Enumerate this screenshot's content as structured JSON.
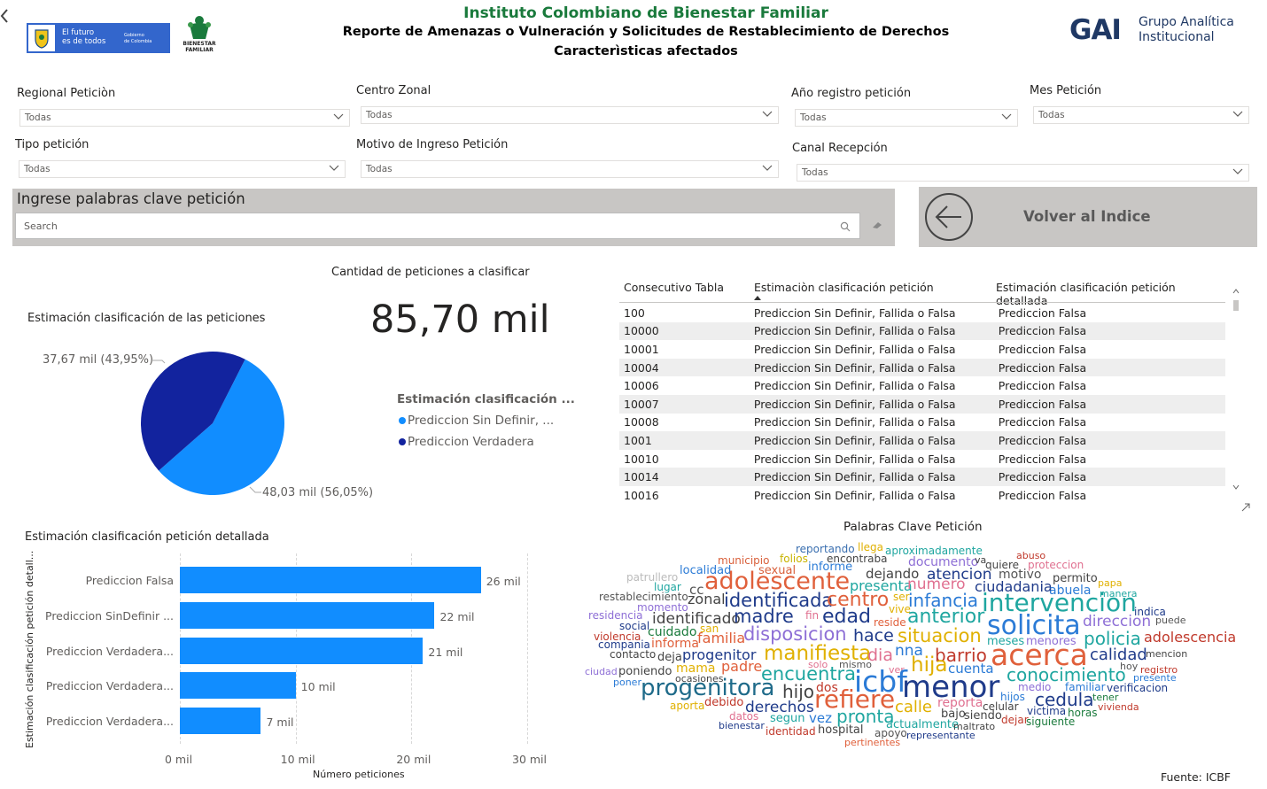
{
  "header": {
    "title": "Instituto Colombiano de Bienestar Familiar",
    "subtitle1": "Reporte de Amenazas o Vulneración y Solicitudes de Restablecimiento de Derechos",
    "subtitle2": "Caracterìsticas afectados",
    "logo_left_text1": "El futuro",
    "logo_left_text2": "es de todos",
    "logo_left_gov1": "Gobierno",
    "logo_left_gov2": "de Colombia",
    "logo_icbf_text1": "BIENESTAR",
    "logo_icbf_text2": "FAMILIAR",
    "logo_gai_text": "GAI",
    "logo_gai_line1": "Grupo Analítica",
    "logo_gai_line2": "Institucional"
  },
  "filters": [
    {
      "label": "Regional Peticiòn",
      "value": "Todas"
    },
    {
      "label": "Centro Zonal",
      "value": "Todas"
    },
    {
      "label": "Año registro petición",
      "value": "Todas"
    },
    {
      "label": "Mes Petición",
      "value": "Todas"
    },
    {
      "label": "Tipo petición",
      "value": "Todas"
    },
    {
      "label": "Motivo de Ingreso Petición",
      "value": "Todas"
    },
    {
      "label": "Canal Recepción",
      "value": "Todas"
    }
  ],
  "search": {
    "label": "Ingrese palabras clave petición",
    "placeholder": "Search"
  },
  "back_button": {
    "label": "Volver al Indice"
  },
  "kpi": {
    "title": "Cantidad de peticiones a clasificar",
    "value": "85,70 mil"
  },
  "pie": {
    "title": "Estimación clasificación de las peticiones",
    "legend_title": "Estimación clasificación ...",
    "label_dark": "37,67 mil (43,95%)",
    "label_light": "48,03 mil (56,05%)",
    "colors": {
      "light": "#118dff",
      "dark": "#12239e"
    }
  },
  "table": {
    "headers": [
      "Consecutivo Tabla",
      "Estimaciòn clasificación petición",
      "Estimación clasificación petición detallada"
    ],
    "rows": [
      [
        "100",
        "Prediccion Sin Definir, Fallida o Falsa",
        "Prediccion Falsa"
      ],
      [
        "10000",
        "Prediccion Sin Definir, Fallida o Falsa",
        "Prediccion Falsa"
      ],
      [
        "10001",
        "Prediccion Sin Definir, Fallida o Falsa",
        "Prediccion Falsa"
      ],
      [
        "10004",
        "Prediccion Sin Definir, Fallida o Falsa",
        "Prediccion Falsa"
      ],
      [
        "10006",
        "Prediccion Sin Definir, Fallida o Falsa",
        "Prediccion Falsa"
      ],
      [
        "10007",
        "Prediccion Sin Definir, Fallida o Falsa",
        "Prediccion Falsa"
      ],
      [
        "10008",
        "Prediccion Sin Definir, Fallida o Falsa",
        "Prediccion Falsa"
      ],
      [
        "1001",
        "Prediccion Sin Definir, Fallida o Falsa",
        "Prediccion Falsa"
      ],
      [
        "10010",
        "Prediccion Sin Definir, Fallida o Falsa",
        "Prediccion Falsa"
      ],
      [
        "10014",
        "Prediccion Sin Definir, Fallida o Falsa",
        "Prediccion Falsa"
      ],
      [
        "10016",
        "Prediccion Sin Definir, Fallida o Falsa",
        "Prediccion Falsa"
      ]
    ]
  },
  "bar_chart": {
    "title": "Estimación clasificación petición detallada",
    "ylabel": "Estimación clasificación petición detall...",
    "xlabel": "Número peticiones",
    "xticks": [
      "0 mil",
      "10 mil",
      "20 mil",
      "30 mil"
    ],
    "bar_color": "#118dff"
  },
  "wordcloud": {
    "title": "Palabras Clave Petición",
    "source": "Fuente: ICBF",
    "words": [
      "reportando",
      "llega",
      "aproximadamente",
      "abuso",
      "municipio",
      "folios",
      "encontraba",
      "documento",
      "va",
      "quiere",
      "proteccion",
      "localidad",
      "sexual",
      "informe",
      "patrullero",
      "adolescente",
      "dejando",
      "atencion",
      "motivo",
      "permito",
      "papa",
      "lugar",
      "cc",
      "presenta",
      "numero",
      "ciudadania",
      "abuela",
      "manera",
      "restablecimiento",
      "zonal",
      "identificada",
      "centro",
      "ser",
      "infancia",
      "intervencion",
      "momento",
      "vive",
      "indica",
      "residencia",
      "identificado",
      "madre",
      "fin",
      "edad",
      "anterior",
      "puede",
      "social",
      "san",
      "reside",
      "solicita",
      "direccion",
      "violencia",
      "cuidado",
      "familia",
      "disposicion",
      "hace",
      "situacion",
      "policia",
      "adolescencia",
      "compania",
      "informa",
      "meses",
      "menores",
      "contacto",
      "deja",
      "progenitor",
      "manifiesta",
      "dia",
      "nna",
      "barrio",
      "acerca",
      "calidad",
      "mencion",
      "solo",
      "mismo",
      "hija",
      "cuenta",
      "hoy",
      "registro",
      "ciudad",
      "poniendo",
      "mama",
      "padre",
      "encuentra",
      "ver",
      "icbf",
      "menor",
      "conocimiento",
      "presente",
      "poner",
      "ocasiones",
      "progenitora",
      "hijo",
      "dos",
      "medio",
      "familiar",
      "verificacion",
      "cedula",
      "hijos",
      "tener",
      "aporta",
      "debido",
      "refiere",
      "calle",
      "reporta",
      "celular",
      "vivienda",
      "derechos",
      "datos",
      "victima",
      "horas",
      "segun",
      "vez",
      "pronta",
      "bajo",
      "siendo",
      "dejar",
      "siguiente",
      "bienestar",
      "identidad",
      "hospital",
      "actualmente",
      "maltrato",
      "apoyo",
      "representante",
      "pertinentes"
    ]
  },
  "chart_data": {
    "type": "bar",
    "orientation": "horizontal",
    "title": "Estimación clasificación petición detallada",
    "xlabel": "Número peticiones",
    "ylabel": "Estimación clasificación petición detall...",
    "xlim": [
      0,
      30
    ],
    "categories": [
      "Prediccion Falsa",
      "Prediccion SinDefinir ...",
      "Prediccion Verdadera...",
      "Prediccion Verdadera...",
      "Prediccion Verdadera..."
    ],
    "values": [
      26,
      22,
      21,
      10,
      7
    ],
    "value_labels": [
      "26 mil",
      "22 mil",
      "21 mil",
      "10 mil",
      "7 mil"
    ],
    "grid": true
  },
  "pie_chart_data": {
    "type": "pie",
    "categories": [
      "Prediccion Sin Definir, ...",
      "Prediccion Verdadera"
    ],
    "values": [
      48.03,
      37.67
    ],
    "percent": [
      56.05,
      43.95
    ]
  }
}
